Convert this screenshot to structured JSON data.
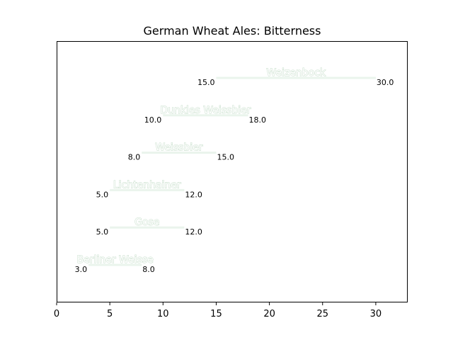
{
  "chart_data": {
    "type": "bar",
    "orientation": "horizontal-range",
    "title": "German Wheat Ales: Bitterness",
    "xlabel": "",
    "ylabel": "",
    "xlim": [
      0,
      33
    ],
    "xticks": [
      0,
      5,
      10,
      15,
      20,
      25,
      30
    ],
    "grid": false,
    "bar_color": "#eaf4ec",
    "label_outline_color": "#c5ddc9",
    "categories": [
      "Berliner Weisse",
      "Gose",
      "Lichtenhainer",
      "Weissbier",
      "Dunkles Weissbier",
      "Weizenbock"
    ],
    "low": [
      3.0,
      5.0,
      5.0,
      8.0,
      10.0,
      15.0
    ],
    "high": [
      8.0,
      12.0,
      12.0,
      15.0,
      18.0,
      30.0
    ],
    "low_labels": [
      "3.0",
      "5.0",
      "5.0",
      "8.0",
      "10.0",
      "15.0"
    ],
    "high_labels": [
      "8.0",
      "12.0",
      "12.0",
      "15.0",
      "18.0",
      "30.0"
    ]
  }
}
